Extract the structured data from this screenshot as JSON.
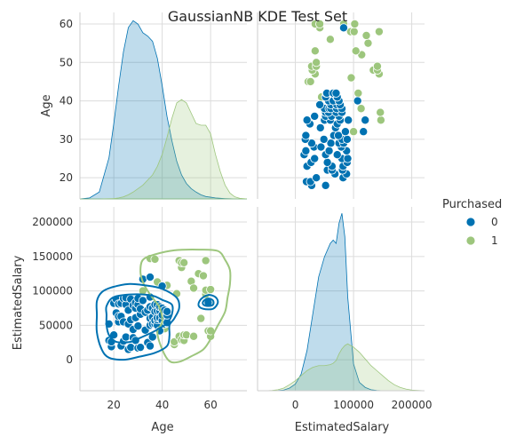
{
  "chart_data": {
    "type": "pairplot",
    "title": "GaussianNB KDE Test Set",
    "variables": [
      "Age",
      "EstimatedSalary"
    ],
    "hue": {
      "title": "Purchased",
      "levels": [
        {
          "label": "0",
          "color": "#0072b2"
        },
        {
          "label": "1",
          "color": "#9dc67d"
        }
      ]
    },
    "axes": {
      "Age": {
        "range": [
          6,
          75
        ],
        "ticks": [
          20,
          40,
          60
        ],
        "diag_ticks": [
          20,
          30,
          40,
          50,
          60
        ],
        "diag_range": [
          14.5,
          63
        ]
      },
      "EstimatedSalary": {
        "range": [
          -45000,
          222000
        ],
        "ticks": [
          0,
          50000,
          100000,
          150000,
          200000
        ],
        "x_range": [
          -65000,
          222000
        ],
        "x_ticks": [
          0,
          100000,
          200000
        ]
      }
    },
    "diag_kde": {
      "Age": {
        "x": [
          6,
          10,
          14,
          18,
          20,
          22,
          24,
          26,
          28,
          30,
          32,
          34,
          36,
          38,
          40,
          42,
          44,
          46,
          48,
          50,
          52,
          54,
          56,
          58,
          60,
          62,
          64,
          66,
          68,
          70,
          72,
          75
        ],
        "class0": [
          0.0,
          0.3,
          2.0,
          12.0,
          22.0,
          33.0,
          43.0,
          50.0,
          52.0,
          51.0,
          48.5,
          47.5,
          46.0,
          41.0,
          33.0,
          24.0,
          17.0,
          11.0,
          7.0,
          4.5,
          3.0,
          2.0,
          1.2,
          0.7,
          0.5,
          0.3,
          0.2,
          0.1,
          0.05,
          0.0,
          0.0,
          0.0
        ],
        "class1": [
          0.0,
          0.0,
          0.0,
          0.05,
          0.1,
          0.3,
          0.6,
          1.2,
          2.0,
          3.0,
          4.0,
          5.5,
          7.0,
          9.5,
          13.0,
          18.0,
          23.5,
          28.0,
          29.0,
          28.0,
          25.0,
          22.0,
          21.5,
          21.5,
          19.0,
          13.0,
          8.0,
          4.0,
          1.7,
          0.6,
          0.2,
          0.0
        ]
      },
      "EstimatedSalary": {
        "x": [
          -65000,
          -50000,
          -40000,
          -30000,
          -20000,
          -10000,
          0,
          10000,
          20000,
          30000,
          40000,
          50000,
          60000,
          65000,
          70000,
          75000,
          80000,
          85000,
          90000,
          100000,
          110000,
          120000,
          130000,
          140000,
          150000,
          160000,
          170000,
          180000,
          190000,
          200000,
          222000
        ],
        "class0": [
          0.0,
          0.0,
          0.0,
          0.05,
          0.2,
          0.8,
          2.0,
          5.0,
          12.0,
          23.0,
          34.0,
          40.0,
          44.0,
          45.0,
          44.0,
          50.0,
          53.0,
          46.0,
          28.0,
          8.0,
          2.5,
          1.0,
          0.3,
          0.1,
          0.0,
          0.0,
          0.0,
          0.0,
          0.0,
          0.0,
          0.0
        ],
        "class1": [
          0.0,
          0.0,
          0.1,
          0.3,
          0.8,
          1.8,
          3.0,
          4.5,
          6.0,
          7.0,
          7.5,
          7.5,
          7.8,
          8.2,
          9.0,
          11.0,
          12.5,
          13.5,
          14.0,
          13.0,
          11.5,
          9.5,
          7.5,
          6.0,
          4.5,
          3.0,
          1.8,
          1.0,
          0.5,
          0.2,
          0.0
        ]
      }
    },
    "points": {
      "class0": [
        [
          18,
          28000
        ],
        [
          18,
          52000
        ],
        [
          19,
          19000
        ],
        [
          19,
          26000
        ],
        [
          20,
          36000
        ],
        [
          20,
          82000
        ],
        [
          21,
          68000
        ],
        [
          21,
          88000
        ],
        [
          22,
          55000
        ],
        [
          22,
          63000
        ],
        [
          22,
          81000
        ],
        [
          23,
          20000
        ],
        [
          23,
          63000
        ],
        [
          23,
          82000
        ],
        [
          24,
          27000
        ],
        [
          24,
          55000
        ],
        [
          24,
          89000
        ],
        [
          25,
          33000
        ],
        [
          25,
          80000
        ],
        [
          25,
          90000
        ],
        [
          26,
          15000
        ],
        [
          26,
          52000
        ],
        [
          26,
          72000
        ],
        [
          27,
          18000
        ],
        [
          27,
          58000
        ],
        [
          27,
          88000
        ],
        [
          28,
          32000
        ],
        [
          28,
          44000
        ],
        [
          28,
          79000
        ],
        [
          29,
          28000
        ],
        [
          29,
          61000
        ],
        [
          29,
          75000
        ],
        [
          29,
          83000
        ],
        [
          30,
          17000
        ],
        [
          30,
          49000
        ],
        [
          30,
          80000
        ],
        [
          30,
          89000
        ],
        [
          31,
          18000
        ],
        [
          31,
          66000
        ],
        [
          31,
          74000
        ],
        [
          32,
          86000
        ],
        [
          32,
          117000
        ],
        [
          33,
          43000
        ],
        [
          33,
          69000
        ],
        [
          34,
          25000
        ],
        [
          34,
          72000
        ],
        [
          35,
          20000
        ],
        [
          35,
          50000
        ],
        [
          35,
          60000
        ],
        [
          35,
          77000
        ],
        [
          35,
          91000
        ],
        [
          35,
          120000
        ],
        [
          36,
          33000
        ],
        [
          36,
          52000
        ],
        [
          36,
          62000
        ],
        [
          36,
          75000
        ],
        [
          37,
          52000
        ],
        [
          37,
          57000
        ],
        [
          37,
          70000
        ],
        [
          37,
          80000
        ],
        [
          38,
          50000
        ],
        [
          38,
          58000
        ],
        [
          38,
          61000
        ],
        [
          38,
          71000
        ],
        [
          38,
          80000
        ],
        [
          39,
          42000
        ],
        [
          39,
          61000
        ],
        [
          39,
          71000
        ],
        [
          39,
          77000
        ],
        [
          40,
          57000
        ],
        [
          40,
          65000
        ],
        [
          40,
          75000
        ],
        [
          40,
          107000
        ],
        [
          41,
          52000
        ],
        [
          41,
          71000
        ],
        [
          41,
          72000
        ],
        [
          42,
          53000
        ],
        [
          42,
          54000
        ],
        [
          42,
          65000
        ],
        [
          42,
          70000
        ],
        [
          59,
          83000
        ]
      ],
      "class1": [
        [
          32,
          100000
        ],
        [
          35,
          147000
        ],
        [
          37,
          146000
        ],
        [
          38,
          113000
        ],
        [
          41,
          45000
        ],
        [
          42,
          108000
        ],
        [
          45,
          22000
        ],
        [
          45,
          26000
        ],
        [
          46,
          96000
        ],
        [
          47,
          34000
        ],
        [
          47,
          144000
        ],
        [
          48,
          29000
        ],
        [
          48,
          134000
        ],
        [
          48,
          141000
        ],
        [
          49,
          28000
        ],
        [
          49,
          36000
        ],
        [
          49,
          141000
        ],
        [
          50,
          36000
        ],
        [
          52,
          114000
        ],
        [
          53,
          34000
        ],
        [
          53,
          104000
        ],
        [
          55,
          125000
        ],
        [
          56,
          60000
        ],
        [
          57,
          122000
        ],
        [
          58,
          95000
        ],
        [
          58,
          101000
        ],
        [
          58,
          144000
        ],
        [
          59,
          42000
        ],
        [
          60,
          34000
        ],
        [
          60,
          42000
        ],
        [
          60,
          83000
        ],
        [
          60,
          102000
        ]
      ]
    },
    "contours": {
      "class0_outer": [
        [
          19,
          105000
        ],
        [
          26,
          110000
        ],
        [
          33,
          108000
        ],
        [
          40,
          103000
        ],
        [
          46,
          90000
        ],
        [
          47,
          75000
        ],
        [
          45,
          60000
        ],
        [
          43,
          50000
        ],
        [
          43,
          35000
        ],
        [
          42,
          20000
        ],
        [
          37,
          10000
        ],
        [
          30,
          4000
        ],
        [
          24,
          0
        ],
        [
          18,
          3000
        ],
        [
          15,
          15000
        ],
        [
          13,
          40000
        ],
        [
          13,
          65000
        ],
        [
          13,
          85000
        ],
        [
          15,
          98000
        ]
      ],
      "class0_inner": [
        [
          20,
          91000
        ],
        [
          28,
          95000
        ],
        [
          36,
          93000
        ],
        [
          40,
          87000
        ],
        [
          44,
          80000
        ],
        [
          44,
          66000
        ],
        [
          42,
          53000
        ],
        [
          39,
          46000
        ],
        [
          36,
          40000
        ],
        [
          31,
          32000
        ],
        [
          27,
          26000
        ],
        [
          21,
          26000
        ],
        [
          18,
          36000
        ],
        [
          17,
          50000
        ],
        [
          17,
          65000
        ],
        [
          17,
          78000
        ]
      ],
      "class0_small": [
        [
          56,
          88000
        ],
        [
          59,
          94000
        ],
        [
          62,
          91000
        ],
        [
          63,
          83000
        ],
        [
          61,
          74000
        ],
        [
          57,
          74000
        ],
        [
          55,
          79000
        ]
      ],
      "class0_tiny": [
        [
          57,
          85000
        ],
        [
          59,
          89000
        ],
        [
          61,
          86000
        ],
        [
          61,
          80000
        ],
        [
          59,
          78000
        ],
        [
          57,
          80000
        ]
      ],
      "class1": [
        [
          37,
          153000
        ],
        [
          45,
          159000
        ],
        [
          55,
          160000
        ],
        [
          63,
          158000
        ],
        [
          66,
          145000
        ],
        [
          68,
          130000
        ],
        [
          68,
          110000
        ],
        [
          67,
          90000
        ],
        [
          66,
          70000
        ],
        [
          63,
          50000
        ],
        [
          60,
          30000
        ],
        [
          57,
          15000
        ],
        [
          52,
          5000
        ],
        [
          47,
          -3000
        ],
        [
          43,
          -2000
        ],
        [
          40,
          15000
        ],
        [
          38,
          40000
        ],
        [
          40,
          55000
        ],
        [
          39,
          75000
        ],
        [
          36,
          90000
        ],
        [
          34,
          100000
        ],
        [
          32,
          113000
        ],
        [
          31,
          128000
        ],
        [
          32,
          145000
        ]
      ]
    }
  }
}
